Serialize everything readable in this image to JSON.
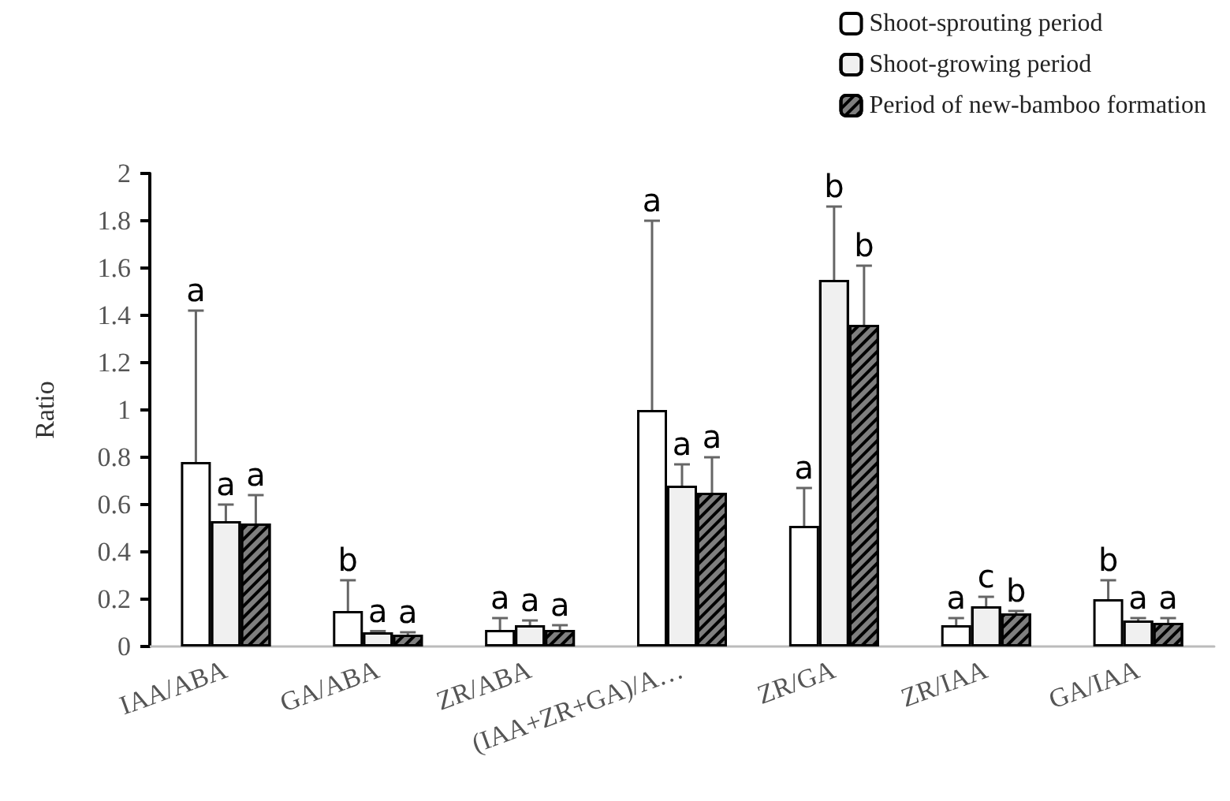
{
  "chart_data": {
    "type": "bar",
    "ylabel": "Ratio",
    "categories": [
      "IAA/ABA",
      "GA/ABA",
      "ZR/ABA",
      "(IAA+ZR+GA)/A…",
      "ZR/GA",
      "ZR/IAA",
      "GA/IAA"
    ],
    "series": [
      {
        "name": "Shoot-sprouting period",
        "color": "#ffffff",
        "values": [
          0.78,
          0.15,
          0.07,
          1.0,
          0.51,
          0.09,
          0.2
        ],
        "errors": [
          [
            0.78,
            1.42
          ],
          [
            0.15,
            0.28
          ],
          [
            0.07,
            0.12
          ],
          [
            1.0,
            1.8
          ],
          [
            0.51,
            0.67
          ],
          [
            0.09,
            0.12
          ],
          [
            0.2,
            0.28
          ]
        ]
      },
      {
        "name": "Shoot-growing period",
        "color": "#f0f0f0",
        "values": [
          0.53,
          0.06,
          0.09,
          0.68,
          1.55,
          0.17,
          0.11
        ],
        "errors": [
          [
            0.53,
            0.6
          ],
          [
            0.06,
            0.065
          ],
          [
            0.09,
            0.11
          ],
          [
            0.68,
            0.77
          ],
          [
            1.55,
            1.86
          ],
          [
            0.17,
            0.21
          ],
          [
            0.11,
            0.12
          ]
        ]
      },
      {
        "name": "Period of new-bamboo formation",
        "color": "#7f7f7f",
        "values": [
          0.52,
          0.05,
          0.07,
          0.65,
          1.36,
          0.14,
          0.1
        ],
        "errors": [
          [
            0.52,
            0.64
          ],
          [
            0.05,
            0.06
          ],
          [
            0.07,
            0.09
          ],
          [
            0.65,
            0.8
          ],
          [
            1.36,
            1.61
          ],
          [
            0.14,
            0.15
          ],
          [
            0.1,
            0.12
          ]
        ]
      }
    ],
    "annotations": [
      "a",
      "a",
      "a",
      "b",
      "a",
      "a",
      "a",
      "a",
      "a",
      "a",
      "a",
      "a",
      "a",
      "b",
      "b",
      "a",
      "c",
      "b",
      "b",
      "a",
      "a"
    ],
    "ylim": [
      0,
      2
    ],
    "yticks": [
      0,
      0.2,
      0.4,
      0.6,
      0.8,
      1,
      1.2,
      1.4,
      1.6,
      1.8,
      2
    ],
    "grid": false,
    "legend": "top right"
  }
}
